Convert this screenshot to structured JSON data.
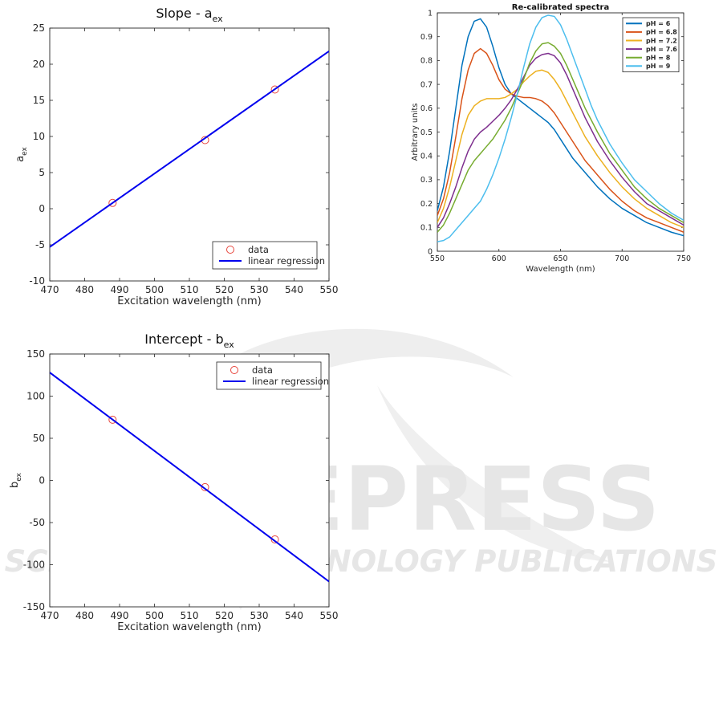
{
  "watermark": {
    "name": "SCITEPRESS",
    "tagline": "SCIENCE AND TECHNOLOGY PUBLICATIONS",
    "color": "#e6e6e6"
  },
  "chart_data": [
    {
      "id": "slope",
      "type": "scatter",
      "title": "Slope - a",
      "title_sub": "ex",
      "xlabel": "Excitation wavelength (nm)",
      "ylabel": "a",
      "ylabel_sub": "ex",
      "xlim": [
        470,
        550
      ],
      "ylim": [
        -10,
        25
      ],
      "xticks": [
        470,
        480,
        490,
        500,
        510,
        520,
        530,
        540,
        550
      ],
      "yticks": [
        -10,
        -5,
        0,
        5,
        10,
        15,
        20,
        25
      ],
      "legend_position": "bottom-right",
      "series": [
        {
          "name": "data",
          "kind": "markers",
          "color": "#e8453c",
          "x": [
            488,
            514.5,
            534.5
          ],
          "y": [
            0.8,
            9.5,
            16.5
          ]
        },
        {
          "name": "linear regression",
          "kind": "line",
          "color": "#0000ee",
          "x": [
            470,
            550
          ],
          "y": [
            -5.3,
            21.8
          ]
        }
      ]
    },
    {
      "id": "intercept",
      "type": "scatter",
      "title": "Intercept - b",
      "title_sub": "ex",
      "xlabel": "Excitation wavelength (nm)",
      "ylabel": "b",
      "ylabel_sub": "ex",
      "xlim": [
        470,
        550
      ],
      "ylim": [
        -150,
        150
      ],
      "xticks": [
        470,
        480,
        490,
        500,
        510,
        520,
        530,
        540,
        550
      ],
      "yticks": [
        -150,
        -100,
        -50,
        0,
        50,
        100,
        150
      ],
      "legend_position": "top-right",
      "series": [
        {
          "name": "data",
          "kind": "markers",
          "color": "#e8453c",
          "x": [
            488,
            514.5,
            534.5
          ],
          "y": [
            72,
            -8,
            -70
          ]
        },
        {
          "name": "linear regression",
          "kind": "line",
          "color": "#0000ee",
          "x": [
            470,
            550
          ],
          "y": [
            128,
            -120
          ]
        }
      ]
    },
    {
      "id": "spectra",
      "type": "line",
      "title": "Re-calibrated spectra",
      "xlabel": "Wavelength (nm)",
      "ylabel": "Arbitrary units",
      "xlim": [
        550,
        750
      ],
      "ylim": [
        0,
        1
      ],
      "xticks": [
        550,
        600,
        650,
        700,
        750
      ],
      "yticks": [
        0,
        0.1,
        0.2,
        0.3,
        0.4,
        0.5,
        0.6,
        0.7,
        0.8,
        0.9,
        1
      ],
      "legend_position": "top-right",
      "x": [
        550,
        555,
        560,
        565,
        570,
        575,
        580,
        585,
        590,
        595,
        600,
        605,
        610,
        615,
        620,
        625,
        630,
        635,
        640,
        645,
        650,
        655,
        660,
        665,
        670,
        675,
        680,
        690,
        700,
        710,
        720,
        730,
        740,
        750
      ],
      "series": [
        {
          "name": "pH = 6",
          "color": "#0072bd",
          "values": [
            0.17,
            0.27,
            0.42,
            0.6,
            0.78,
            0.9,
            0.965,
            0.975,
            0.94,
            0.86,
            0.77,
            0.7,
            0.66,
            0.64,
            0.62,
            0.6,
            0.58,
            0.56,
            0.54,
            0.51,
            0.47,
            0.43,
            0.39,
            0.36,
            0.33,
            0.3,
            0.27,
            0.22,
            0.18,
            0.15,
            0.12,
            0.1,
            0.08,
            0.065
          ]
        },
        {
          "name": "pH = 6.8",
          "color": "#d95319",
          "values": [
            0.15,
            0.22,
            0.33,
            0.48,
            0.64,
            0.76,
            0.83,
            0.85,
            0.83,
            0.78,
            0.72,
            0.68,
            0.66,
            0.65,
            0.645,
            0.645,
            0.64,
            0.63,
            0.61,
            0.58,
            0.54,
            0.5,
            0.46,
            0.42,
            0.38,
            0.35,
            0.32,
            0.26,
            0.21,
            0.17,
            0.14,
            0.12,
            0.1,
            0.08
          ]
        },
        {
          "name": "pH = 7.2",
          "color": "#edb120",
          "values": [
            0.12,
            0.18,
            0.27,
            0.38,
            0.49,
            0.57,
            0.61,
            0.63,
            0.64,
            0.64,
            0.64,
            0.645,
            0.66,
            0.68,
            0.71,
            0.735,
            0.755,
            0.76,
            0.75,
            0.72,
            0.68,
            0.63,
            0.58,
            0.53,
            0.48,
            0.44,
            0.4,
            0.33,
            0.27,
            0.22,
            0.18,
            0.15,
            0.12,
            0.1
          ]
        },
        {
          "name": "pH = 7.6",
          "color": "#7e2f8e",
          "values": [
            0.1,
            0.14,
            0.2,
            0.27,
            0.35,
            0.42,
            0.47,
            0.5,
            0.52,
            0.545,
            0.57,
            0.6,
            0.635,
            0.68,
            0.73,
            0.78,
            0.81,
            0.825,
            0.83,
            0.82,
            0.79,
            0.74,
            0.68,
            0.62,
            0.56,
            0.51,
            0.46,
            0.38,
            0.31,
            0.25,
            0.2,
            0.17,
            0.14,
            0.11
          ]
        },
        {
          "name": "pH = 8",
          "color": "#77ac30",
          "values": [
            0.08,
            0.11,
            0.16,
            0.22,
            0.28,
            0.34,
            0.38,
            0.41,
            0.44,
            0.47,
            0.51,
            0.55,
            0.6,
            0.66,
            0.72,
            0.79,
            0.84,
            0.87,
            0.875,
            0.86,
            0.83,
            0.78,
            0.72,
            0.66,
            0.6,
            0.55,
            0.5,
            0.41,
            0.34,
            0.27,
            0.22,
            0.18,
            0.15,
            0.12
          ]
        },
        {
          "name": "pH = 9",
          "color": "#4dbeee",
          "values": [
            0.04,
            0.045,
            0.06,
            0.09,
            0.12,
            0.15,
            0.18,
            0.21,
            0.26,
            0.32,
            0.39,
            0.47,
            0.56,
            0.66,
            0.77,
            0.87,
            0.94,
            0.98,
            0.99,
            0.985,
            0.95,
            0.89,
            0.82,
            0.75,
            0.68,
            0.61,
            0.55,
            0.45,
            0.37,
            0.3,
            0.25,
            0.2,
            0.16,
            0.13
          ]
        }
      ]
    }
  ]
}
